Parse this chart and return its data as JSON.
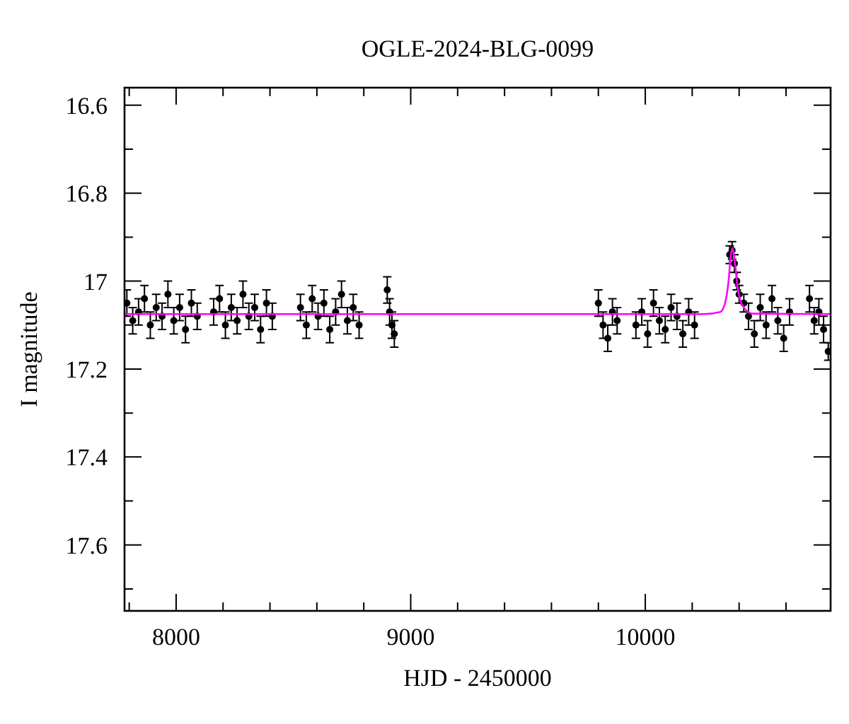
{
  "chart_data": {
    "type": "scatter",
    "title": "OGLE-2024-BLG-0099",
    "xlabel": "HJD - 2450000",
    "ylabel": "I magnitude",
    "xlim": [
      7780,
      10790
    ],
    "ylim": [
      17.75,
      16.56
    ],
    "xticks": [
      {
        "value": 7800,
        "label": null
      },
      8000,
      {
        "value": 8200,
        "label": null
      },
      {
        "value": 8400,
        "label": null
      },
      {
        "value": 8600,
        "label": null
      },
      {
        "value": 8800,
        "label": null
      },
      9000,
      {
        "value": 9200,
        "label": null
      },
      {
        "value": 9400,
        "label": null
      },
      {
        "value": 9600,
        "label": null
      },
      {
        "value": 9800,
        "label": null
      },
      10000,
      {
        "value": 10200,
        "label": null
      },
      {
        "value": 10400,
        "label": null
      },
      {
        "value": 10600,
        "label": null
      }
    ],
    "yticks": [
      16.6,
      {
        "value": 16.7,
        "label": null
      },
      16.8,
      {
        "value": 16.9,
        "label": null
      },
      17,
      {
        "value": 17.1,
        "label": null
      },
      17.2,
      {
        "value": 17.3,
        "label": null
      },
      17.4,
      {
        "value": 17.5,
        "label": null
      },
      17.6,
      {
        "value": 17.7,
        "label": null
      }
    ],
    "grid": false,
    "series": [
      {
        "type": "scatter",
        "color": "#000000",
        "marker": "circle",
        "x": [
          7790,
          7815,
          7840,
          7865,
          7890,
          7915,
          7940,
          7965,
          7990,
          8015,
          8040,
          8065,
          8090,
          8160,
          8185,
          8210,
          8235,
          8260,
          8285,
          8310,
          8335,
          8360,
          8385,
          8410,
          8530,
          8555,
          8580,
          8605,
          8630,
          8655,
          8680,
          8705,
          8730,
          8755,
          8780,
          8900,
          8910,
          8920,
          8930,
          9800,
          9820,
          9840,
          9860,
          9880,
          9960,
          9985,
          10010,
          10035,
          10060,
          10085,
          10110,
          10135,
          10160,
          10185,
          10210,
          10360,
          10370,
          10380,
          10390,
          10400,
          10420,
          10440,
          10465,
          10490,
          10515,
          10540,
          10565,
          10590,
          10615,
          10700,
          10720,
          10740,
          10760,
          10780
        ],
        "values": [
          17.05,
          17.09,
          17.07,
          17.04,
          17.1,
          17.06,
          17.08,
          17.03,
          17.09,
          17.06,
          17.11,
          17.05,
          17.08,
          17.07,
          17.04,
          17.1,
          17.06,
          17.09,
          17.03,
          17.08,
          17.06,
          17.11,
          17.05,
          17.08,
          17.06,
          17.1,
          17.04,
          17.08,
          17.05,
          17.11,
          17.07,
          17.03,
          17.09,
          17.06,
          17.1,
          17.02,
          17.07,
          17.1,
          17.12,
          17.05,
          17.1,
          17.13,
          17.07,
          17.09,
          17.1,
          17.07,
          17.12,
          17.05,
          17.09,
          17.11,
          17.06,
          17.08,
          17.12,
          17.07,
          17.1,
          16.94,
          16.93,
          16.96,
          17,
          17.03,
          17.05,
          17.08,
          17.12,
          17.06,
          17.1,
          17.04,
          17.09,
          17.13,
          17.07,
          17.04,
          17.09,
          17.07,
          17.11,
          17.16
        ],
        "errors": [
          0.03,
          0.03,
          0.03,
          0.03,
          0.03,
          0.03,
          0.03,
          0.03,
          0.03,
          0.03,
          0.03,
          0.03,
          0.03,
          0.03,
          0.03,
          0.03,
          0.03,
          0.03,
          0.03,
          0.03,
          0.03,
          0.03,
          0.03,
          0.03,
          0.03,
          0.03,
          0.03,
          0.03,
          0.03,
          0.03,
          0.03,
          0.03,
          0.03,
          0.03,
          0.03,
          0.03,
          0.03,
          0.03,
          0.03,
          0.03,
          0.03,
          0.03,
          0.03,
          0.03,
          0.03,
          0.03,
          0.03,
          0.03,
          0.03,
          0.03,
          0.03,
          0.03,
          0.03,
          0.03,
          0.03,
          0.02,
          0.02,
          0.02,
          0.02,
          0.02,
          0.02,
          0.03,
          0.03,
          0.03,
          0.03,
          0.03,
          0.03,
          0.03,
          0.03,
          0.03,
          0.03,
          0.03,
          0.03,
          0.02
        ]
      },
      {
        "type": "line",
        "color": "#ff00ff",
        "x": [
          7780,
          10250,
          10320,
          10340,
          10355,
          10365,
          10372,
          10380,
          10395,
          10420,
          10460,
          10790
        ],
        "values": [
          17.075,
          17.075,
          17.07,
          17.05,
          17,
          16.94,
          16.925,
          16.95,
          17.02,
          17.06,
          17.074,
          17.075
        ]
      }
    ]
  }
}
